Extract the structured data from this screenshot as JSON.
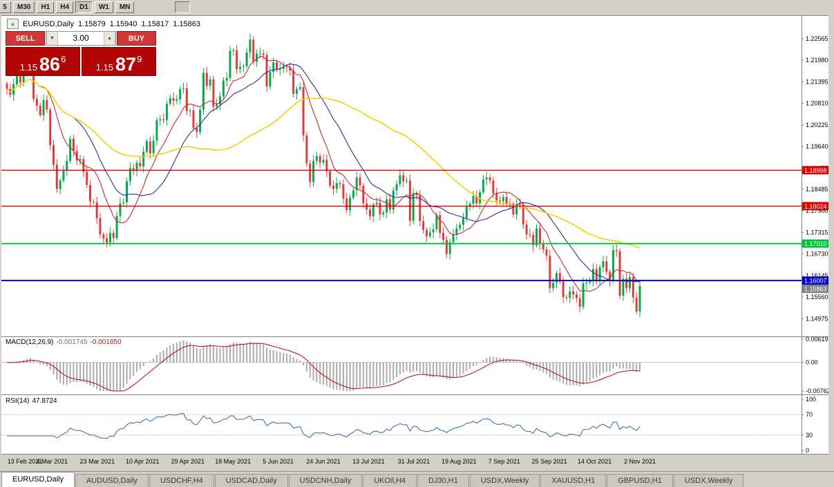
{
  "toolbar": {
    "buttons": [
      "5",
      "M30",
      "H1",
      "H4",
      "D1",
      "W1",
      "MN"
    ],
    "active_button": "D1"
  },
  "chart_header": {
    "icon": "▲",
    "symbol": "EURUSD,Daily",
    "open": "1.15879",
    "high": "1.15940",
    "low": "1.15817",
    "close": "1.15863"
  },
  "trade_panel": {
    "sell_label": "SELL",
    "buy_label": "BUY",
    "volume": "3.00",
    "spin_down_icon": "▼",
    "spin_up_icon": "▲",
    "sell_price_figure": "1.15",
    "sell_price_pips": "86",
    "sell_price_point": "6",
    "buy_price_figure": "1.15",
    "buy_price_pips": "87",
    "buy_price_point": "9"
  },
  "axis": {
    "ticks": [
      "1.22565",
      "1.21980",
      "1.21395",
      "1.20810",
      "1.20225",
      "1.19640",
      "1.19055",
      "1.18485",
      "1.17900",
      "1.17315",
      "1.16730",
      "1.16145",
      "1.15560",
      "1.14975"
    ]
  },
  "levels": [
    {
      "value": 1.18998,
      "label": "1.18998",
      "color": "#dd0000",
      "width": 1.4
    },
    {
      "value": 1.18024,
      "label": "1.18024",
      "color": "#dd0000",
      "width": 1.4
    },
    {
      "value": 1.1701,
      "label": "1.17010",
      "color": "#00c53b",
      "width": 2
    },
    {
      "value": 1.16007,
      "label": "1.16007",
      "color": "#0000cc",
      "width": 2
    }
  ],
  "current_price": {
    "value": 1.15863,
    "label": "1.15863",
    "color": "#808080"
  },
  "macd": {
    "label": "MACD(12,26,9)",
    "value1": "-0.001745",
    "value2": "-0.001850",
    "axis_labels": [
      "0.006193",
      "0.00",
      "-0.007621"
    ]
  },
  "rsi": {
    "label": "RSI(14)",
    "value": "47.8724",
    "axis_labels": [
      "100",
      "70",
      "30",
      "0"
    ]
  },
  "dates": [
    "13 Feb 2021",
    "4 Mar 2021",
    "23 Mar 2021",
    "10 Apr 2021",
    "29 Apr 2021",
    "18 May 2021",
    "5 Jun 2021",
    "24 Jun 2021",
    "13 Jul 2021",
    "31 Jul 2021",
    "19 Aug 2021",
    "7 Sep 2021",
    "25 Sep 2021",
    "14 Oct 2021",
    "2 Nov 2021"
  ],
  "tabs": {
    "active": 0,
    "items": [
      "EURUSD,Daily",
      "AUDUSD,Daily",
      "USDCHF,H4",
      "USDCAD,Daily",
      "USDCNH,Daily",
      "UKOil,H4",
      "DJ30,H1",
      "USDX,Weekly",
      "XAUUSD,H1",
      "GBPUSD,H1",
      "USDX,Weekly"
    ]
  },
  "chart_data": {
    "type": "candlestick",
    "symbol": "EURUSD",
    "timeframe": "Daily",
    "last_bar": {
      "open": 1.15879,
      "high": 1.1594,
      "low": 1.15817,
      "close": 1.15863
    },
    "price_axis": {
      "min": 1.1455,
      "max": 1.229
    },
    "colors": {
      "up": "#0aa64c",
      "down": "#dc3c3c"
    },
    "hlines": [
      1.18998,
      1.18024,
      1.1701,
      1.16007
    ],
    "moving_averages": [
      {
        "period": 10,
        "color": "#c4292e"
      },
      {
        "period": 21,
        "color": "#2c2c9e"
      },
      {
        "period": 55,
        "color": "#f2d200"
      }
    ],
    "indicators": {
      "macd": {
        "fast": 12,
        "slow": 26,
        "signal": 9,
        "current": [
          -0.001745,
          -0.00185
        ],
        "range": [
          -0.007621,
          0.006193
        ]
      },
      "rsi": {
        "period": 14,
        "current": 47.8724,
        "levels": [
          30,
          70
        ],
        "range": [
          0,
          100
        ]
      }
    },
    "closes": [
      1.212,
      1.2104,
      1.2133,
      1.2155,
      1.2138,
      1.2166,
      1.218,
      1.2176,
      1.2093,
      1.2075,
      1.2049,
      1.209,
      1.2064,
      1.1968,
      1.1915,
      1.1849,
      1.1872,
      1.19,
      1.1925,
      1.1985,
      1.1952,
      1.1926,
      1.193,
      1.1895,
      1.186,
      1.1815,
      1.1813,
      1.177,
      1.1726,
      1.1715,
      1.1704,
      1.173,
      1.1716,
      1.1776,
      1.181,
      1.1813,
      1.187,
      1.1905,
      1.1898,
      1.192,
      1.191,
      1.195,
      1.1978,
      1.1946,
      1.198,
      1.2035,
      1.2038,
      1.2036,
      1.208,
      1.2095,
      1.2088,
      1.2092,
      1.212,
      1.2122,
      1.206,
      1.2062,
      1.2014,
      1.2003,
      1.2064,
      1.2164,
      1.2129,
      1.2146,
      1.2072,
      1.2078,
      1.21,
      1.2143,
      1.215,
      1.2223,
      1.2225,
      1.2174,
      1.218,
      1.2182,
      1.2219,
      1.2254,
      1.2194,
      1.2216,
      1.2216,
      1.2212,
      1.2127,
      1.2166,
      1.2192,
      1.2172,
      1.2174,
      1.218,
      1.2178,
      1.217,
      1.2107,
      1.212,
      1.2125,
      1.1994,
      1.1918,
      1.1868,
      1.1925,
      1.1938,
      1.192,
      1.1928,
      1.1897,
      1.1858,
      1.1849,
      1.1865,
      1.1862,
      1.1823,
      1.1792,
      1.1825,
      1.1845,
      1.188,
      1.1858,
      1.181,
      1.1793,
      1.1775,
      1.1807,
      1.1812,
      1.178,
      1.1785,
      1.1821,
      1.1793,
      1.1845,
      1.1862,
      1.1886,
      1.187,
      1.1872,
      1.1763,
      1.1838,
      1.1832,
      1.1762,
      1.1738,
      1.1721,
      1.1731,
      1.174,
      1.1778,
      1.173,
      1.1711,
      1.1673,
      1.1705,
      1.1725,
      1.1742,
      1.1752,
      1.177,
      1.1803,
      1.1809,
      1.183,
      1.181,
      1.184,
      1.1875,
      1.188,
      1.1872,
      1.1837,
      1.1818,
      1.1816,
      1.1827,
      1.181,
      1.1809,
      1.178,
      1.1808,
      1.1806,
      1.1753,
      1.1726,
      1.1725,
      1.1696,
      1.1742,
      1.17,
      1.1685,
      1.1668,
      1.158,
      1.1595,
      1.1621,
      1.1598,
      1.1556,
      1.1554,
      1.1571,
      1.1563,
      1.1553,
      1.153,
      1.1593,
      1.1596,
      1.1601,
      1.1632,
      1.1601,
      1.1637,
      1.1653,
      1.1625,
      1.16,
      1.1683,
      1.168,
      1.156,
      1.1606,
      1.158,
      1.161,
      1.1555,
      1.1517,
      1.1586
    ]
  }
}
